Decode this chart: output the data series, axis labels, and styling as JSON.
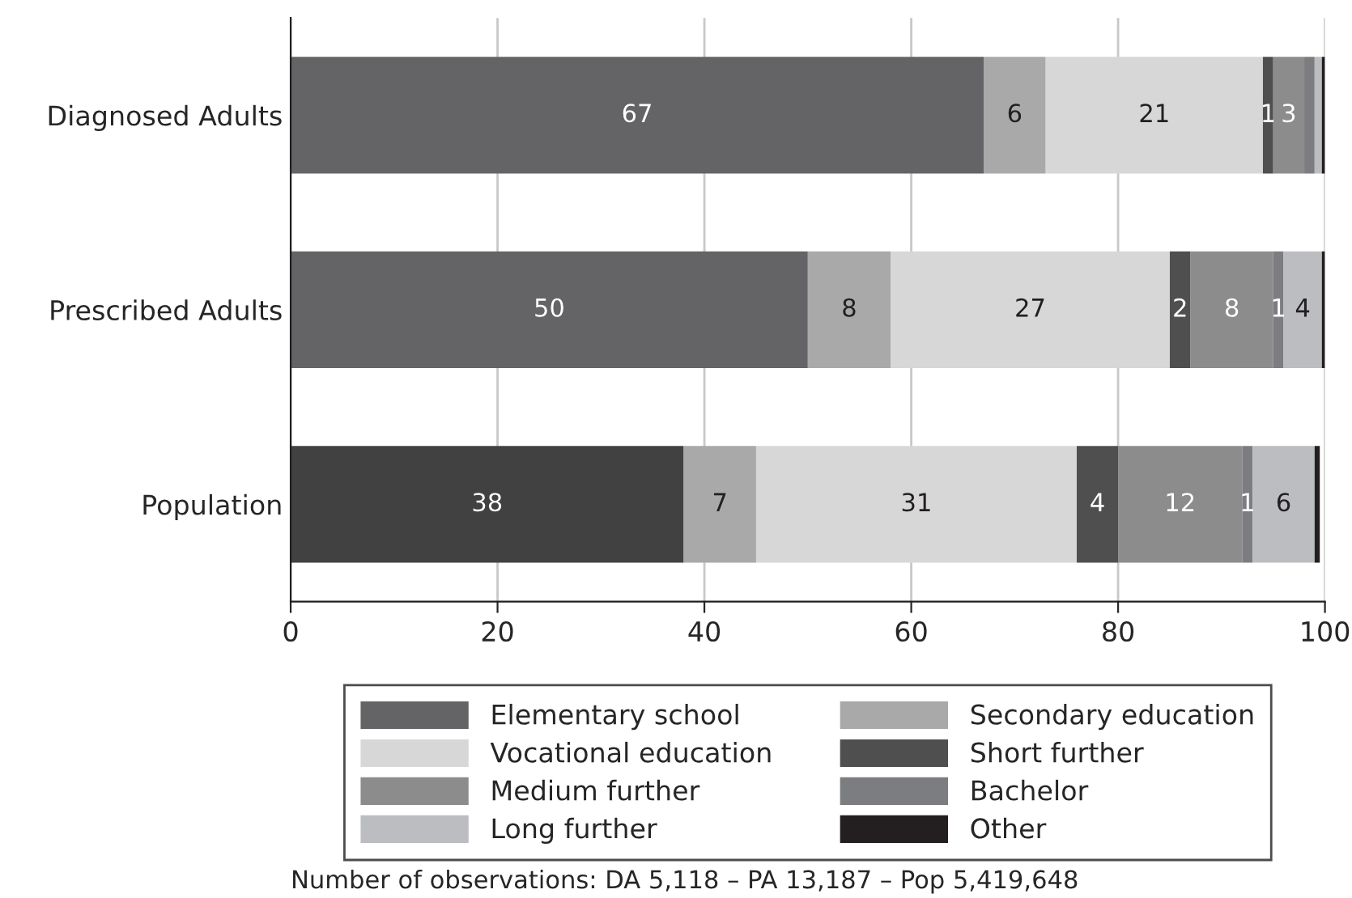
{
  "chart_data": {
    "type": "bar",
    "orientation": "horizontal",
    "stacked": true,
    "categories": [
      "Diagnosed Adults",
      "Prescribed Adults",
      "Population"
    ],
    "series": [
      {
        "name": "Elementary school",
        "color": "#646466",
        "colors": [
          "#646466",
          "#646466",
          "#414141"
        ],
        "values": [
          67,
          50,
          38
        ],
        "value_labels": [
          "67",
          "50",
          "38"
        ]
      },
      {
        "name": "Secondary education",
        "color": "#a9a9a9",
        "values": [
          6,
          8,
          7
        ],
        "value_labels": [
          "6",
          "8",
          "7"
        ]
      },
      {
        "name": "Vocational education",
        "color": "#d7d7d7",
        "values": [
          21,
          27,
          31
        ],
        "value_labels": [
          "21",
          "27",
          "31"
        ]
      },
      {
        "name": "Short further",
        "color": "#4f4f4f",
        "values": [
          1,
          2,
          4
        ],
        "value_labels": [
          "1",
          "2",
          "4"
        ]
      },
      {
        "name": "Medium further",
        "color": "#8c8c8c",
        "values": [
          3,
          8,
          12
        ],
        "value_labels": [
          "3",
          "8",
          "12"
        ]
      },
      {
        "name": "Bachelor",
        "color": "#7c7d80",
        "values": [
          1,
          1,
          1
        ],
        "value_labels": [
          null,
          "1",
          "1"
        ]
      },
      {
        "name": "Long further",
        "color": "#bcbdc0",
        "values": [
          0.7,
          3.7,
          6
        ],
        "value_labels": [
          null,
          "4",
          "6"
        ]
      },
      {
        "name": "Other",
        "color": "#231f20",
        "values": [
          0.3,
          0.3,
          0.5
        ],
        "value_labels": [
          null,
          null,
          null
        ]
      }
    ],
    "xlim": [
      0,
      100
    ],
    "xticks": [
      0,
      20,
      40,
      60,
      80,
      100
    ],
    "grid": "x",
    "legend": "bottom",
    "annotations": [
      "Number of observations: DA 5,118 – PA 13,187 – Pop 5,419,648"
    ]
  }
}
